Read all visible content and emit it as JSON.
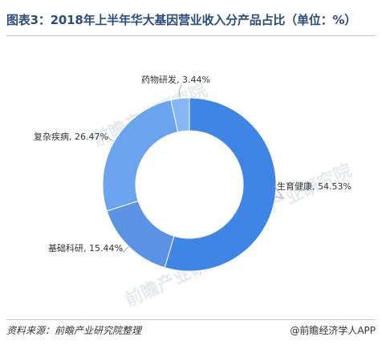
{
  "title": "图表3：2018年上半年华大基因营业收入分产品占比（单位：%）",
  "footer": {
    "source": "资料来源：前瞻产业研究院整理",
    "brand": "@前瞻经济学人APP"
  },
  "watermark_text": "前瞻产业研究院",
  "colors": {
    "ring": "#ffffff",
    "slices": [
      "#3f85e5",
      "#5a93e3",
      "#6aa3ee",
      "#86b6f3"
    ]
  },
  "chart_data": {
    "type": "pie",
    "variant": "donut",
    "title": "图表3：2018年上半年华大基因营业收入分产品占比（单位：%）",
    "categories": [
      "生育健康",
      "基础科研",
      "复杂疾病",
      "药物研发"
    ],
    "values": [
      54.53,
      15.44,
      26.47,
      3.44
    ],
    "labels": [
      "生育健康, 54.53%",
      "基础科研, 15.44%",
      "复杂疾病, 26.47%",
      "药物研发, 3.44%"
    ],
    "unit": "%",
    "legend": "none"
  }
}
